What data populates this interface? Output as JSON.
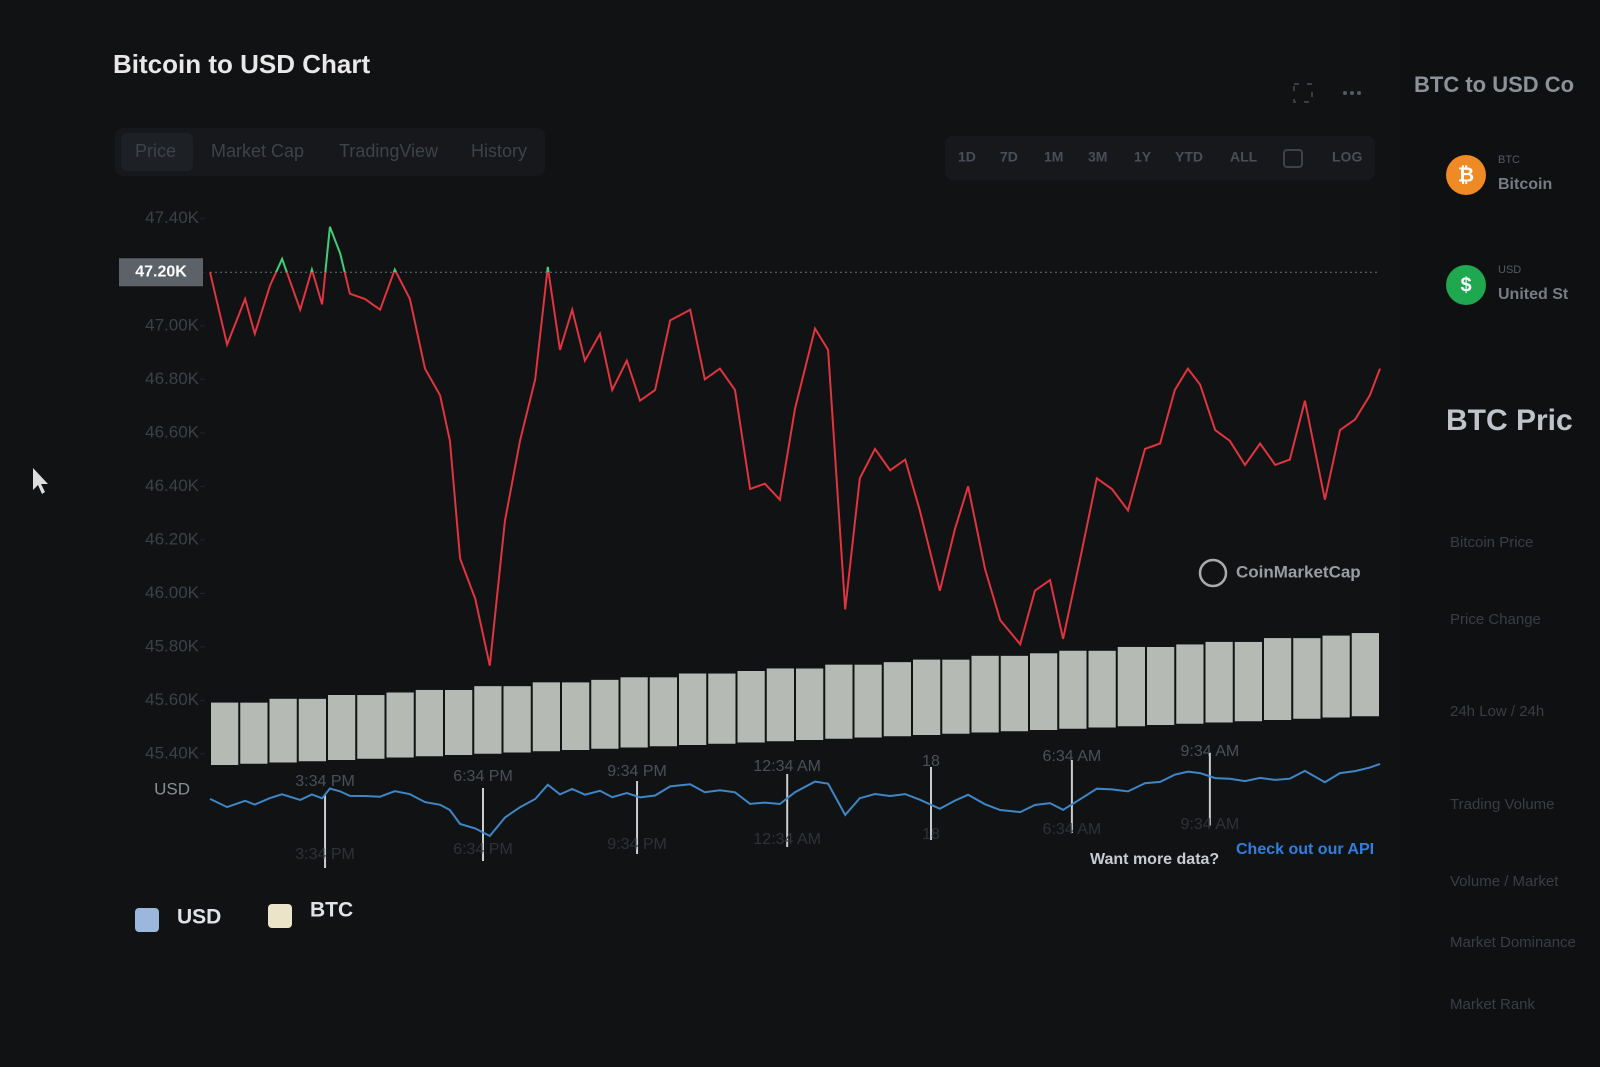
{
  "header": {
    "title": "Bitcoin to USD Chart"
  },
  "tabs": [
    "Price",
    "Market Cap",
    "TradingView",
    "History"
  ],
  "ranges": [
    "1D",
    "7D",
    "1M",
    "3M",
    "1Y",
    "YTD",
    "ALL",
    "LOG"
  ],
  "chart_data": {
    "type": "line",
    "y_label": "USD",
    "watermark": "CoinMarketCap",
    "x": [
      0,
      0.35,
      0.72,
      0.92,
      1.23,
      1.48,
      1.85,
      2.09,
      2.3,
      2.46,
      2.67,
      2.87,
      3.18,
      3.49,
      3.79,
      4.1,
      4.41,
      4.72,
      4.92,
      5.13,
      5.44,
      5.74,
      6.05,
      6.36,
      6.67,
      6.93,
      7.18,
      7.43,
      7.69,
      8.0,
      8.25,
      8.55,
      8.82,
      9.13,
      9.44,
      9.85,
      10.15,
      10.46,
      10.77,
      11.08,
      11.38,
      11.69,
      12.0,
      12.41,
      12.68,
      13.03,
      13.33,
      13.64,
      13.95,
      14.26,
      14.56,
      14.97,
      15.28,
      15.55,
      15.9,
      16.21,
      16.62,
      16.92,
      17.23,
      17.5,
      17.85,
      18.19,
      18.5,
      18.83,
      19.18,
      19.49,
      19.79,
      20.06,
      20.31,
      20.62,
      20.92,
      21.23,
      21.54,
      21.85,
      22.15,
      22.46,
      22.87,
      23.18,
      23.49,
      23.79,
      24.0
    ],
    "series": [
      {
        "name": "USD",
        "color": "#e0343f",
        "above_color": "#3ecf7a",
        "values": [
          47200,
          46930,
          47100,
          46970,
          47150,
          47250,
          47060,
          47210,
          47080,
          47370,
          47270,
          47120,
          47100,
          47060,
          47210,
          47100,
          46840,
          46740,
          46570,
          46130,
          45980,
          45730,
          46270,
          46570,
          46800,
          47220,
          46910,
          47060,
          46870,
          46970,
          46760,
          46870,
          46720,
          46760,
          47020,
          47060,
          46800,
          46840,
          46760,
          46390,
          46410,
          46350,
          46690,
          46990,
          46910,
          45940,
          46430,
          46540,
          46460,
          46500,
          46310,
          46010,
          46240,
          46400,
          46090,
          45900,
          45810,
          46010,
          46050,
          45830,
          46130,
          46430,
          46390,
          46310,
          46540,
          46560,
          46760,
          46840,
          46780,
          46610,
          46570,
          46480,
          46560,
          46480,
          46500,
          46720,
          46350,
          46610,
          46650,
          46740,
          46840
        ]
      }
    ],
    "reference": {
      "value": 47200,
      "label": "47.20K"
    },
    "xlim": [
      0,
      24
    ],
    "xticks": [
      {
        "value": 2.36,
        "label": "3:34 PM"
      },
      {
        "value": 5.6,
        "label": "6:34 PM"
      },
      {
        "value": 8.76,
        "label": "9:34 PM"
      },
      {
        "value": 11.84,
        "label": "12:34 AM"
      },
      {
        "value": 14.79,
        "label": "18"
      },
      {
        "value": 17.68,
        "label": "6:34 AM"
      },
      {
        "value": 20.51,
        "label": "9:34 AM"
      }
    ],
    "ylim": [
      45340,
      47470
    ],
    "yticks": [
      {
        "value": 47400,
        "label": "47.40K"
      },
      {
        "value": 47200,
        "label": "47.20K"
      },
      {
        "value": 47000,
        "label": "47.00K"
      },
      {
        "value": 46800,
        "label": "46.80K"
      },
      {
        "value": 46600,
        "label": "46.60K"
      },
      {
        "value": 46400,
        "label": "46.40K"
      },
      {
        "value": 46200,
        "label": "46.20K"
      },
      {
        "value": 46000,
        "label": "46.00K"
      },
      {
        "value": 45800,
        "label": "45.80K"
      },
      {
        "value": 45600,
        "label": "45.60K"
      },
      {
        "value": 45400,
        "label": "45.40K"
      }
    ],
    "volume": {
      "color": "#dfe6dc",
      "ylim": [
        0,
        100
      ],
      "values": [
        48,
        47,
        49,
        48,
        50,
        49,
        50,
        51,
        50,
        52,
        51,
        53,
        52,
        53,
        54,
        53,
        55,
        54,
        55,
        56,
        55,
        57,
        56,
        57,
        58,
        57,
        59,
        58,
        59,
        60,
        59,
        61,
        60,
        61,
        62,
        61,
        63,
        62,
        63,
        64
      ]
    },
    "navigator_color": "#3f86c6"
  },
  "legend": [
    {
      "label": "USD",
      "color": "#9bb8dc"
    },
    {
      "label": "BTC",
      "color": "#ece4c8"
    }
  ],
  "footer": {
    "text": "Want more data?",
    "link": "Check out our API"
  },
  "sidebar": {
    "title": "BTC to USD Co",
    "converter": [
      {
        "code": "BTC",
        "name": "Bitcoin",
        "color": "#f08a24",
        "icon": "₿"
      },
      {
        "code": "USD",
        "name": "United St",
        "color": "#1fa84f",
        "icon": "$"
      }
    ],
    "stats_title": "BTC Pric",
    "stats": [
      "Bitcoin Price",
      "Price Change",
      "24h Low / 24h",
      "Trading Volume",
      "Volume / Market",
      "Market Dominance",
      "Market Rank"
    ]
  }
}
